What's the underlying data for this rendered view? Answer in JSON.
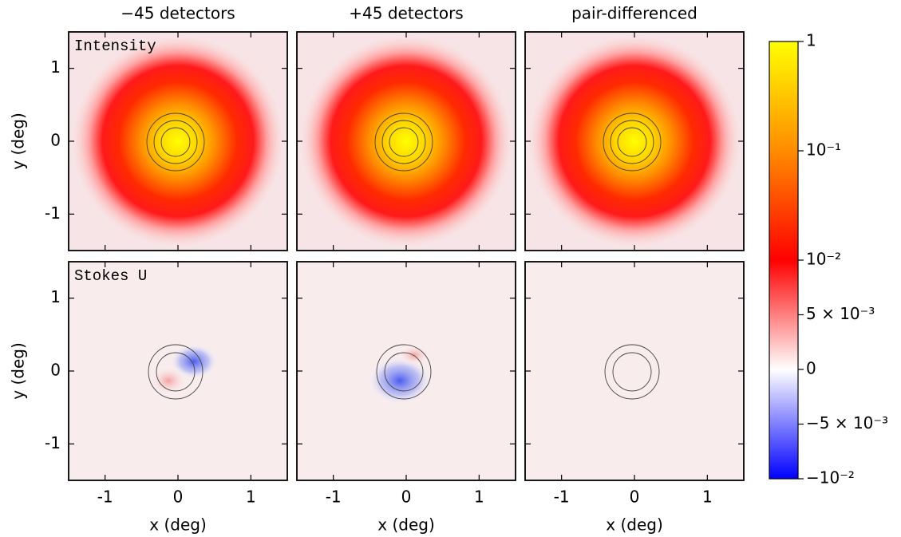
{
  "chart_data": [
    {
      "type": "heatmap",
      "title": "−45 detectors",
      "annotation": "Intensity",
      "ylabel": "y (deg)",
      "xlim": [
        -1.5,
        1.5
      ],
      "ylim": [
        -1.5,
        1.5
      ],
      "xticks": [
        -1,
        0,
        1
      ],
      "yticks": [
        -1,
        0,
        1
      ]
    },
    {
      "type": "heatmap",
      "title": "+45 detectors",
      "xlim": [
        -1.5,
        1.5
      ],
      "ylim": [
        -1.5,
        1.5
      ],
      "xticks": [
        -1,
        0,
        1
      ],
      "yticks": [
        -1,
        0,
        1
      ]
    },
    {
      "type": "heatmap",
      "title": "pair-differenced",
      "xlim": [
        -1.5,
        1.5
      ],
      "ylim": [
        -1.5,
        1.5
      ],
      "xticks": [
        -1,
        0,
        1
      ],
      "yticks": [
        -1,
        0,
        1
      ]
    },
    {
      "type": "heatmap",
      "annotation": "Stokes U",
      "ylabel": "y (deg)",
      "xlabel": "x (deg)",
      "xlim": [
        -1.5,
        1.5
      ],
      "ylim": [
        -1.5,
        1.5
      ],
      "xticks": [
        -1,
        0,
        1
      ],
      "yticks": [
        -1,
        0,
        1
      ]
    },
    {
      "type": "heatmap",
      "xlabel": "x (deg)",
      "xlim": [
        -1.5,
        1.5
      ],
      "ylim": [
        -1.5,
        1.5
      ],
      "xticks": [
        -1,
        0,
        1
      ],
      "yticks": [
        -1,
        0,
        1
      ]
    },
    {
      "type": "heatmap",
      "xlabel": "x (deg)",
      "xlim": [
        -1.5,
        1.5
      ],
      "ylim": [
        -1.5,
        1.5
      ],
      "xticks": [
        -1,
        0,
        1
      ],
      "yticks": [
        -1,
        0,
        1
      ]
    },
    {
      "type": "colorbar",
      "scale": "symlog",
      "linthresh": 0.01,
      "ylim": [
        -0.01,
        1
      ],
      "colors": [
        "#0000ff",
        "#ffffff",
        "#ff0000",
        "#ff8c00",
        "#ffff00"
      ],
      "yticks": [
        {
          "value": -0.01,
          "label": "−10⁻²"
        },
        {
          "value": -0.005,
          "label": "−5 × 10⁻³"
        },
        0,
        {
          "value": 0.005,
          "label": "5 × 10⁻³"
        },
        {
          "value": 0.01,
          "label": "10⁻²"
        },
        {
          "value": 0.1,
          "label": "10⁻¹"
        },
        1
      ]
    }
  ]
}
